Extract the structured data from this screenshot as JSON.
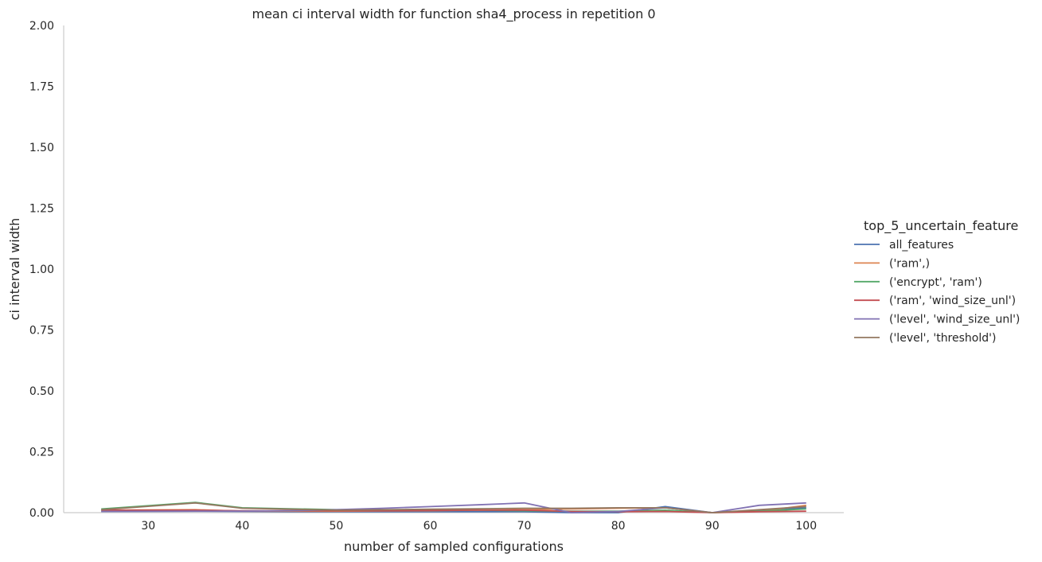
{
  "chart_data": {
    "type": "line",
    "title": "mean ci interval width for function sha4_process in repetition 0",
    "xlabel": "number of sampled configurations",
    "ylabel": "ci interval width",
    "xlim": [
      21,
      104
    ],
    "ylim": [
      0,
      2
    ],
    "xticks": [
      "30",
      "40",
      "50",
      "60",
      "70",
      "80",
      "90",
      "100"
    ],
    "xtick_values": [
      30,
      40,
      50,
      60,
      70,
      80,
      90,
      100
    ],
    "yticks": [
      "0.00",
      "0.25",
      "0.50",
      "0.75",
      "1.00",
      "1.25",
      "1.50",
      "1.75",
      "2.00"
    ],
    "ytick_values": [
      0,
      0.25,
      0.5,
      0.75,
      1.0,
      1.25,
      1.5,
      1.75,
      2.0
    ],
    "grid": false,
    "legend_title": "top_5_uncertain_feature",
    "legend_position": "right",
    "x": [
      25,
      35,
      40,
      45,
      50,
      55,
      60,
      65,
      70,
      75,
      80,
      85,
      90,
      95,
      100
    ],
    "series": [
      {
        "name": "all_features",
        "color": "#4c72b0",
        "values": [
          0.005,
          0.006,
          0.005,
          0.004,
          0.004,
          0.004,
          0.004,
          0.004,
          0.004,
          0.0,
          0.0,
          0.025,
          0.0,
          0.01,
          0.02
        ]
      },
      {
        "name": "('ram',)",
        "color": "#dd8452",
        "values": [
          0.01,
          0.012,
          0.006,
          0.006,
          0.006,
          0.007,
          0.008,
          0.01,
          0.012,
          0.015,
          0.018,
          0.02,
          0.0,
          0.005,
          0.03
        ]
      },
      {
        "name": "('encrypt', 'ram')",
        "color": "#55a868",
        "values": [
          0.015,
          0.042,
          0.02,
          0.016,
          0.012,
          0.011,
          0.01,
          0.01,
          0.008,
          0.006,
          0.006,
          0.01,
          0.0,
          0.006,
          0.015
        ]
      },
      {
        "name": "('ram', 'wind_size_unl')",
        "color": "#c44e52",
        "values": [
          0.01,
          0.01,
          0.008,
          0.008,
          0.008,
          0.008,
          0.009,
          0.01,
          0.01,
          0.005,
          0.004,
          0.005,
          0.0,
          0.004,
          0.006
        ]
      },
      {
        "name": "('level', 'wind_size_unl')",
        "color": "#8172b3",
        "values": [
          0.005,
          0.006,
          0.006,
          0.008,
          0.012,
          0.018,
          0.025,
          0.032,
          0.04,
          0.0,
          0.005,
          0.02,
          0.0,
          0.03,
          0.04
        ]
      },
      {
        "name": "('level', 'threshold')",
        "color": "#937860",
        "values": [
          0.012,
          0.04,
          0.018,
          0.014,
          0.01,
          0.012,
          0.014,
          0.016,
          0.018,
          0.018,
          0.02,
          0.02,
          0.0,
          0.012,
          0.025
        ]
      }
    ]
  }
}
